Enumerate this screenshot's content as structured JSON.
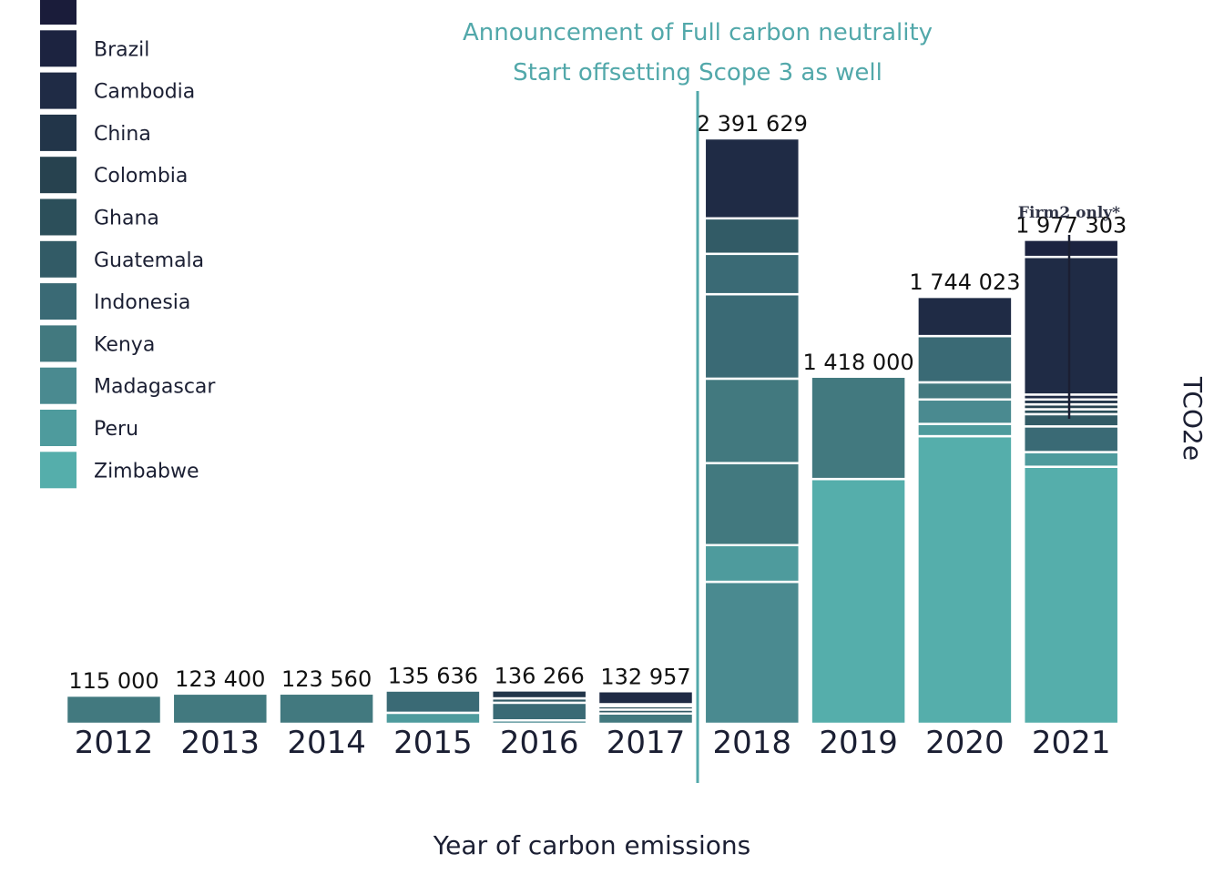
{
  "chart_data": {
    "type": "bar",
    "stacked": true,
    "xlabel": "Year of carbon emissions",
    "ylabel": "TCO2e",
    "categories": [
      "2012",
      "2013",
      "2014",
      "2015",
      "2016",
      "2017",
      "2018",
      "2019",
      "2020",
      "2021"
    ],
    "totals": [
      115000,
      123400,
      123560,
      135636,
      136266,
      132957,
      2391629,
      1418000,
      1744023,
      1977303
    ],
    "total_labels": [
      "115 000",
      "123 400",
      "123 560",
      "135 636",
      "136 266",
      "132 957",
      "2 391 629",
      "1 418 000",
      "1 744 023",
      "1 977 303"
    ],
    "ylim": [
      0,
      2391629
    ],
    "legend": {
      "position": "top-left",
      "entries": [
        {
          "name": "",
          "color": "#1a1c3a"
        },
        {
          "name": "Brazil",
          "color": "#1c2340"
        },
        {
          "name": "Cambodia",
          "color": "#1f2b45"
        },
        {
          "name": "China",
          "color": "#223549"
        },
        {
          "name": "Colombia",
          "color": "#27424f"
        },
        {
          "name": "Ghana",
          "color": "#2c4f5a"
        },
        {
          "name": "Guatemala",
          "color": "#325b66"
        },
        {
          "name": "Indonesia",
          "color": "#3a6a75"
        },
        {
          "name": "Kenya",
          "color": "#42797f"
        },
        {
          "name": "Madagascar",
          "color": "#4a8a90"
        },
        {
          "name": "Peru",
          "color": "#4e9b9d"
        },
        {
          "name": "Zimbabwe",
          "color": "#55aeab"
        }
      ]
    },
    "stacks": [
      [
        {
          "color": "#42797f",
          "value": 115000
        }
      ],
      [
        {
          "color": "#42797f",
          "value": 123400
        }
      ],
      [
        {
          "color": "#42797f",
          "value": 123560
        }
      ],
      [
        {
          "color": "#4e9b9d",
          "value": 45000
        },
        {
          "color": "#3a6a75",
          "value": 90636
        }
      ],
      [
        {
          "color": "#4a8a90",
          "value": 14000
        },
        {
          "color": "#3a6a75",
          "value": 72000
        },
        {
          "color": "#325b66",
          "value": 18000
        },
        {
          "color": "#223549",
          "value": 32266
        }
      ],
      [
        {
          "color": "#42797f",
          "value": 42000
        },
        {
          "color": "#325b66",
          "value": 16000
        },
        {
          "color": "#2c4f5a",
          "value": 14000
        },
        {
          "color": "#223549",
          "value": 8000
        },
        {
          "color": "#1f2b45",
          "value": 52957
        }
      ],
      [
        {
          "color": "#4a8a90",
          "value": 580000
        },
        {
          "color": "#4e9b9d",
          "value": 150000
        },
        {
          "color": "#42797f",
          "value": 335000
        },
        {
          "color": "#42797f",
          "value": 345000
        },
        {
          "color": "#3a6a75",
          "value": 345000
        },
        {
          "color": "#3a6a75",
          "value": 165000
        },
        {
          "color": "#325b66",
          "value": 145000
        },
        {
          "color": "#1f2b45",
          "value": 326629
        }
      ],
      [
        {
          "color": "#55aeab",
          "value": 1000000
        },
        {
          "color": "#42797f",
          "value": 418000
        }
      ],
      [
        {
          "color": "#55aeab",
          "value": 1175000
        },
        {
          "color": "#4e9b9d",
          "value": 50000
        },
        {
          "color": "#4a8a90",
          "value": 100000
        },
        {
          "color": "#42797f",
          "value": 70000
        },
        {
          "color": "#3a6a75",
          "value": 189023
        },
        {
          "color": "#1f2b45",
          "value": 160000
        }
      ],
      [
        {
          "color": "#55aeab",
          "value": 1050000
        },
        {
          "color": "#4e9b9d",
          "value": 60000
        },
        {
          "color": "#3a6a75",
          "value": 105000
        },
        {
          "color": "#325b66",
          "value": 50000
        },
        {
          "color": "#2c4f5a",
          "value": 20000
        },
        {
          "color": "#27424f",
          "value": 20000
        },
        {
          "color": "#223549",
          "value": 20000
        },
        {
          "color": "#1f2b45",
          "value": 20000
        },
        {
          "color": "#1f2b45",
          "value": 562303
        },
        {
          "color": "#1c2340",
          "value": 70000
        }
      ]
    ],
    "annotations": [
      {
        "text": "Announcement of Full carbon neutrality",
        "color": "#52a8aa"
      },
      {
        "text": "Start offsetting Scope 3 as well",
        "color": "#52a8aa"
      },
      {
        "text": "Firm2 only*",
        "year": "2021"
      }
    ]
  }
}
